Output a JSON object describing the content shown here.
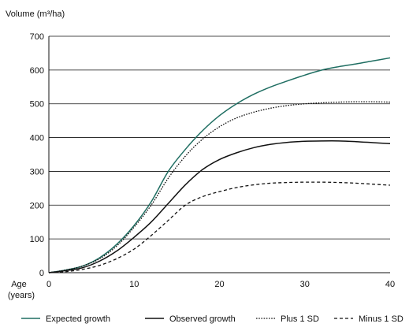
{
  "chart_data": {
    "type": "line",
    "ylabel": "Volume (m³/ha)",
    "xlabel_line1": "Age",
    "xlabel_line2": "(years)",
    "xlim": [
      0,
      40
    ],
    "ylim": [
      0,
      700
    ],
    "x_ticks": [
      0,
      10,
      20,
      30,
      40
    ],
    "y_ticks": [
      0,
      100,
      200,
      300,
      400,
      500,
      600,
      700
    ],
    "grid": "horizontal",
    "legend_placement": "bottom",
    "series": [
      {
        "name": "Expected growth",
        "color": "#1f6e62",
        "style": "solid",
        "x": [
          0,
          2,
          4,
          6,
          8,
          10,
          12,
          14,
          16,
          18,
          20,
          22,
          24,
          26,
          28,
          30,
          32,
          34,
          36,
          38,
          40
        ],
        "y": [
          0,
          8,
          20,
          45,
          85,
          140,
          210,
          300,
          365,
          420,
          465,
          500,
          528,
          550,
          568,
          585,
          600,
          610,
          618,
          627,
          636
        ]
      },
      {
        "name": "Observed growth",
        "color": "#111111",
        "style": "solid",
        "x": [
          0,
          2,
          4,
          6,
          8,
          10,
          12,
          14,
          16,
          18,
          20,
          22,
          24,
          26,
          28,
          30,
          32,
          34,
          36,
          38,
          40
        ],
        "y": [
          0,
          6,
          15,
          35,
          65,
          105,
          150,
          205,
          260,
          305,
          335,
          355,
          370,
          380,
          386,
          389,
          390,
          390,
          388,
          385,
          382
        ]
      },
      {
        "name": "Plus 1 SD",
        "color": "#111111",
        "style": "dotted",
        "x": [
          0,
          2,
          4,
          6,
          8,
          10,
          12,
          14,
          16,
          18,
          20,
          22,
          24,
          26,
          28,
          30,
          32,
          34,
          36,
          38,
          40
        ],
        "y": [
          0,
          8,
          20,
          42,
          80,
          135,
          200,
          280,
          345,
          395,
          432,
          458,
          475,
          487,
          495,
          500,
          503,
          505,
          506,
          506,
          505
        ]
      },
      {
        "name": "Minus 1 SD",
        "color": "#111111",
        "style": "dashed",
        "x": [
          0,
          2,
          4,
          6,
          8,
          10,
          12,
          14,
          16,
          18,
          20,
          22,
          24,
          26,
          28,
          30,
          32,
          34,
          36,
          38,
          40
        ],
        "y": [
          0,
          3,
          10,
          22,
          42,
          70,
          110,
          155,
          200,
          225,
          240,
          252,
          260,
          265,
          267,
          268,
          268,
          267,
          265,
          262,
          259
        ]
      }
    ]
  }
}
